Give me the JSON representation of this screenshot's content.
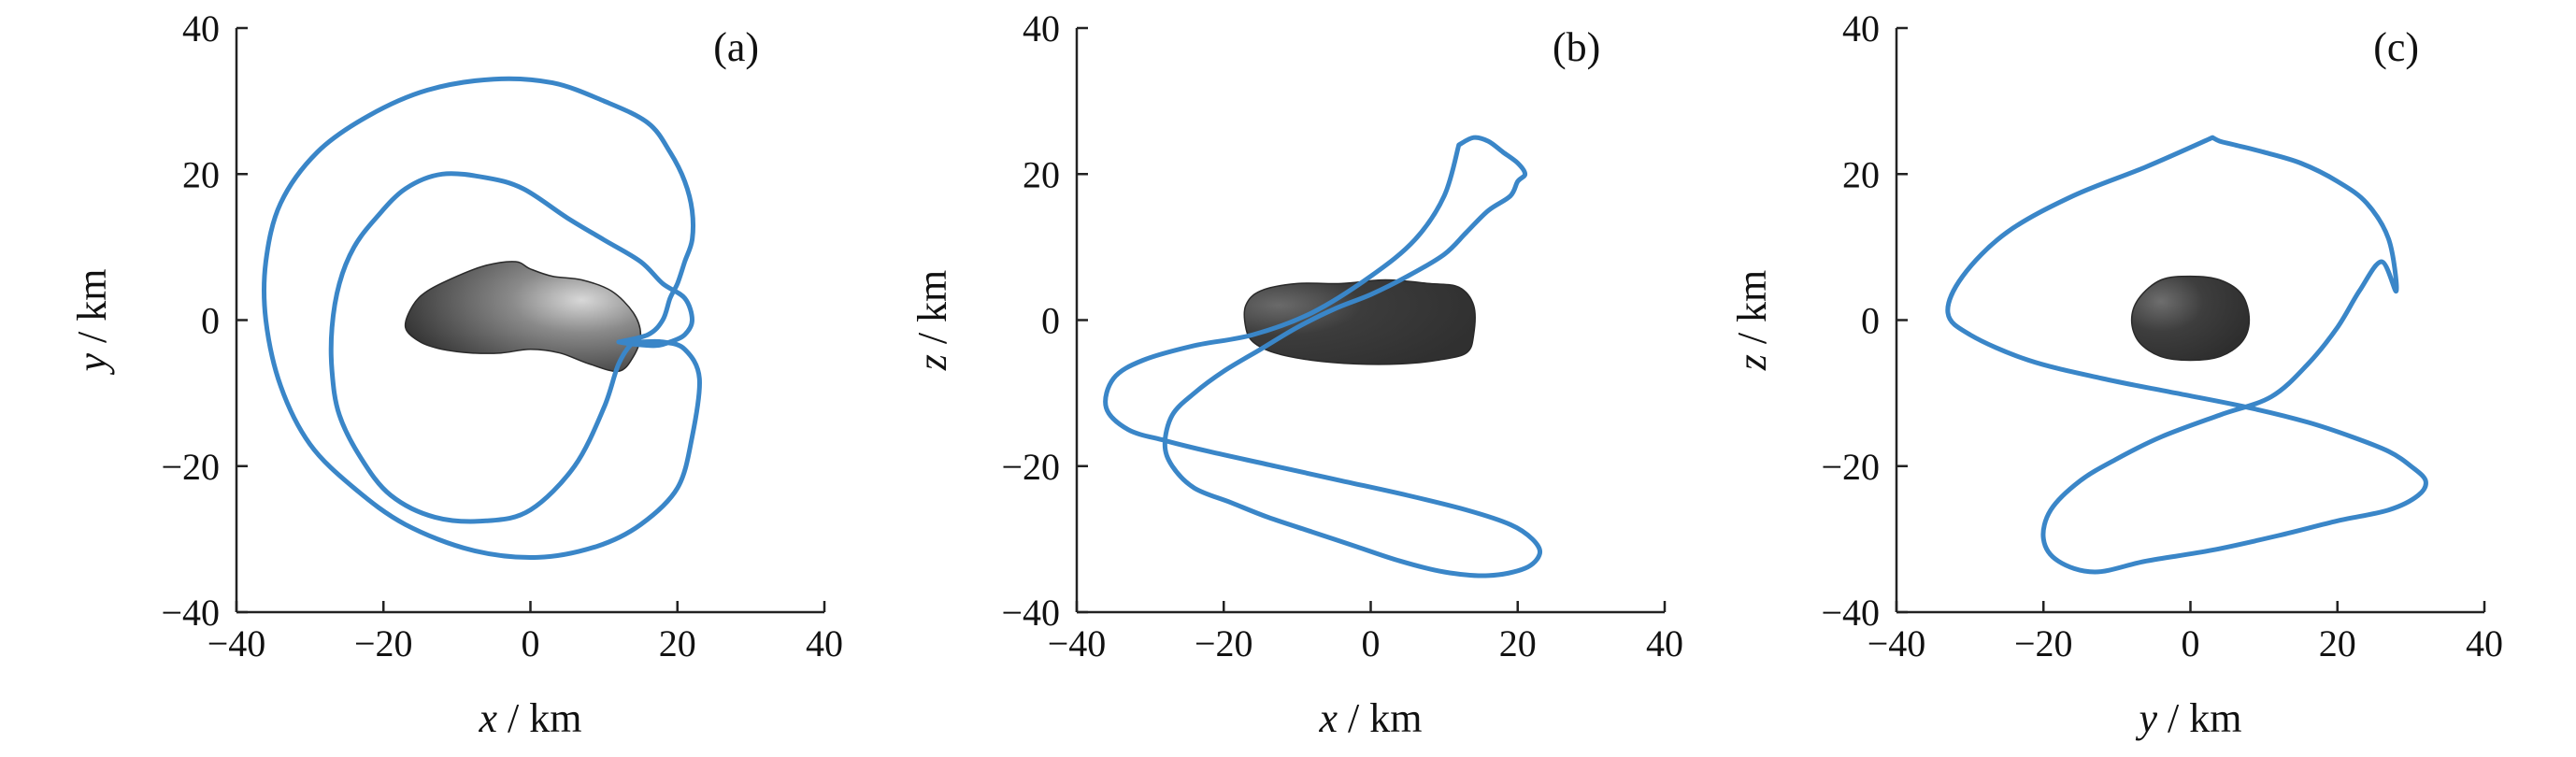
{
  "chart_data": [
    {
      "type": "line",
      "panel_label": "(a)",
      "xlabel_var": "x",
      "ylabel_var": "y",
      "xlabel_unit": " / km",
      "ylabel_unit": " / km",
      "xlim": [
        -40,
        40
      ],
      "ylim": [
        -40,
        40
      ],
      "xticks": [
        -40,
        -20,
        0,
        20,
        40
      ],
      "yticks": [
        -40,
        -20,
        0,
        20,
        40
      ],
      "xtick_labels": [
        "−40",
        "−20",
        "0",
        "20",
        "40"
      ],
      "ytick_labels": [
        "−40",
        "−20",
        "0",
        "20",
        "40"
      ],
      "series": [
        {
          "color": "#3a86c8",
          "x": [
            12,
            16,
            18,
            19,
            20,
            21,
            22,
            22,
            21,
            19,
            16,
            10,
            3,
            -5,
            -14,
            -22,
            -29,
            -34,
            -36,
            -36,
            -34,
            -30,
            -24,
            -17,
            -8,
            1,
            9,
            15,
            20,
            22,
            23,
            21,
            18,
            15,
            14,
            12,
            10,
            6,
            0,
            -6,
            -13,
            -19,
            -23,
            -26,
            -27,
            -27,
            -26,
            -24,
            -21,
            -17,
            -12,
            -6,
            -1,
            5,
            10,
            15,
            18,
            21,
            22,
            21,
            19,
            17,
            14,
            12
          ],
          "y": [
            -3,
            -2,
            0,
            3,
            5,
            8,
            11,
            15,
            19,
            23,
            27,
            30,
            32.5,
            33,
            31.5,
            28,
            23,
            16,
            8,
            0,
            -9,
            -17,
            -23,
            -28,
            -31.5,
            -32.5,
            -31,
            -28,
            -23,
            -16,
            -8,
            -4,
            -3,
            -3,
            -3,
            -6,
            -12,
            -20,
            -26,
            -27.5,
            -27,
            -24,
            -19,
            -13,
            -7,
            -1,
            5,
            10,
            14,
            18,
            20,
            19.5,
            18,
            14,
            11,
            8,
            5,
            3,
            0,
            -2,
            -3,
            -3.5,
            -3.3,
            -3
          ]
        }
      ],
      "body": {
        "shape": "elongated-asteroid",
        "outline": [
          [
            -17,
            -1
          ],
          [
            -16,
            2
          ],
          [
            -14,
            4
          ],
          [
            -10,
            6
          ],
          [
            -6,
            7.5
          ],
          [
            -2,
            8
          ],
          [
            0,
            7
          ],
          [
            3,
            6
          ],
          [
            7,
            5.5
          ],
          [
            11,
            4
          ],
          [
            14,
            1
          ],
          [
            15,
            -2
          ],
          [
            14,
            -5
          ],
          [
            12,
            -7
          ],
          [
            8,
            -6
          ],
          [
            4,
            -4.5
          ],
          [
            0,
            -4
          ],
          [
            -4,
            -4.5
          ],
          [
            -8,
            -4.5
          ],
          [
            -12,
            -4
          ],
          [
            -15,
            -3
          ]
        ]
      }
    },
    {
      "type": "line",
      "panel_label": "(b)",
      "xlabel_var": "x",
      "ylabel_var": "z",
      "xlabel_unit": " / km",
      "ylabel_unit": " / km",
      "xlim": [
        -40,
        40
      ],
      "ylim": [
        -40,
        40
      ],
      "xticks": [
        -40,
        -20,
        0,
        20,
        40
      ],
      "yticks": [
        -40,
        -20,
        0,
        20,
        40
      ],
      "xtick_labels": [
        "−40",
        "−20",
        "0",
        "20",
        "40"
      ],
      "ytick_labels": [
        "−40",
        "−20",
        "0",
        "20",
        "40"
      ],
      "series": [
        {
          "color": "#3a86c8",
          "x": [
            12,
            10,
            6,
            0,
            -8,
            -16,
            -24,
            -31,
            -35,
            -36,
            -33,
            -28,
            -22,
            -13,
            -4,
            5,
            13,
            19,
            22,
            23,
            21,
            16,
            10,
            4,
            -2,
            -8,
            -14,
            -19,
            -24,
            -27,
            -28,
            -27,
            -24,
            -20,
            -15,
            -10,
            -5,
            0,
            5,
            10,
            13,
            16,
            19,
            20,
            21,
            20,
            18,
            16,
            14,
            12
          ],
          "y": [
            24,
            17,
            11,
            6,
            1,
            -2,
            -3.5,
            -5.5,
            -8,
            -12,
            -15,
            -16.5,
            -18,
            -20,
            -22,
            -24,
            -26,
            -28,
            -30,
            -32,
            -34,
            -35,
            -34.5,
            -33,
            -31,
            -29,
            -27,
            -25,
            -23,
            -20,
            -17,
            -13,
            -10,
            -7,
            -4,
            -1,
            1.5,
            3.5,
            6,
            9,
            12,
            15,
            17,
            19,
            20,
            21.5,
            23,
            24.5,
            25,
            24
          ]
        }
      ],
      "body": {
        "shape": "elongated-asteroid",
        "outline": [
          [
            -17,
            2
          ],
          [
            -15,
            4
          ],
          [
            -10,
            5
          ],
          [
            -4,
            5
          ],
          [
            2,
            5.5
          ],
          [
            8,
            5
          ],
          [
            12,
            4.5
          ],
          [
            14,
            2
          ],
          [
            14,
            -2
          ],
          [
            13,
            -4.5
          ],
          [
            9,
            -5.5
          ],
          [
            4,
            -6
          ],
          [
            -2,
            -6
          ],
          [
            -8,
            -5.5
          ],
          [
            -13,
            -4.5
          ],
          [
            -16,
            -3
          ],
          [
            -17,
            -1
          ]
        ]
      }
    },
    {
      "type": "line",
      "panel_label": "(c)",
      "xlabel_var": "y",
      "ylabel_var": "z",
      "xlabel_unit": " / km",
      "ylabel_unit": " / km",
      "xlim": [
        -40,
        40
      ],
      "ylim": [
        -40,
        40
      ],
      "xticks": [
        -40,
        -20,
        0,
        20,
        40
      ],
      "yticks": [
        -40,
        -20,
        0,
        20,
        40
      ],
      "xtick_labels": [
        "−40",
        "−20",
        "0",
        "20",
        "40"
      ],
      "ytick_labels": [
        "−40",
        "−20",
        "0",
        "20",
        "40"
      ],
      "series": [
        {
          "color": "#3a86c8",
          "x": [
            3,
            -6,
            -16,
            -25,
            -31,
            -33,
            -30,
            -22,
            -12,
            -2,
            8,
            16,
            22,
            27,
            30,
            32,
            31,
            27,
            20,
            12,
            3,
            -6,
            -13,
            -18,
            -20,
            -19,
            -15,
            -10,
            -4,
            4,
            11,
            16,
            20,
            23,
            26,
            28,
            27,
            24,
            20,
            15,
            10,
            6,
            4,
            3
          ],
          "y": [
            25,
            21,
            17,
            12,
            6,
            1,
            -2,
            -5.5,
            -8,
            -10,
            -12,
            -14,
            -16,
            -18,
            -20,
            -22,
            -24,
            -26,
            -27.5,
            -29.5,
            -31.5,
            -33,
            -34.5,
            -33,
            -30,
            -26,
            -22,
            -19,
            -16,
            -13,
            -10.5,
            -6,
            -1,
            4,
            8,
            4,
            11,
            16,
            19,
            21.5,
            23,
            24,
            24.5,
            25
          ]
        }
      ],
      "body": {
        "shape": "rounded-asteroid",
        "outline": [
          [
            -8,
            0
          ],
          [
            -7,
            3
          ],
          [
            -4,
            5.5
          ],
          [
            0,
            6
          ],
          [
            4,
            5.5
          ],
          [
            7,
            3.5
          ],
          [
            8,
            0
          ],
          [
            7,
            -3
          ],
          [
            4,
            -5
          ],
          [
            0,
            -5.5
          ],
          [
            -4,
            -5
          ],
          [
            -7,
            -3
          ]
        ]
      }
    }
  ]
}
